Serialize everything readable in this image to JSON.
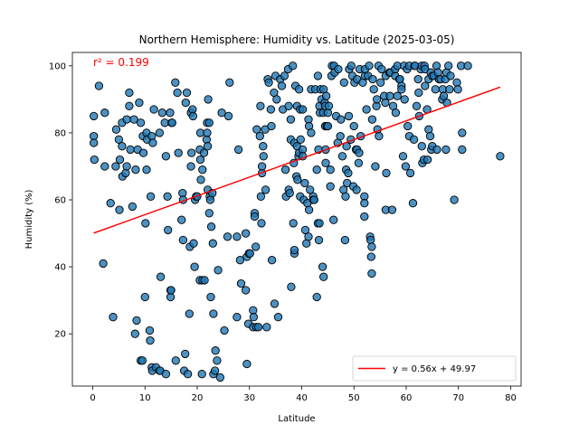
{
  "chart_data": {
    "type": "scatter",
    "title": "Northern Hemisphere: Humidity vs. Latitude (2025-03-05)",
    "xlabel": "Latitude",
    "ylabel": "Humidity (%)",
    "xlim": [
      -3.9,
      82
    ],
    "ylim": [
      4.4,
      104
    ],
    "xticks": [
      0,
      10,
      20,
      30,
      40,
      50,
      60,
      70,
      80
    ],
    "yticks": [
      20,
      40,
      60,
      80,
      100
    ],
    "grid": false,
    "annotation": {
      "text": "r² = 0.199",
      "color": "#ff0000"
    },
    "regression": {
      "label": "y = 0.56x + 49.97",
      "slope": 0.56,
      "intercept": 49.97,
      "x_range": [
        0.2,
        78
      ],
      "color": "#ff0000"
    },
    "legend_position": "lower-right",
    "marker_color": "#1f77b4",
    "points": [
      [
        0.2,
        85
      ],
      [
        0.2,
        79
      ],
      [
        0.2,
        77
      ],
      [
        0.3,
        72
      ],
      [
        1.2,
        94
      ],
      [
        2.0,
        41
      ],
      [
        2.3,
        86
      ],
      [
        2.3,
        70
      ],
      [
        3.4,
        59
      ],
      [
        3.9,
        25
      ],
      [
        4.4,
        70
      ],
      [
        4.5,
        81
      ],
      [
        5.0,
        78
      ],
      [
        5.1,
        57
      ],
      [
        5.2,
        72
      ],
      [
        5.6,
        83
      ],
      [
        5.6,
        76
      ],
      [
        5.7,
        67
      ],
      [
        6.3,
        68
      ],
      [
        6.5,
        84
      ],
      [
        6.5,
        70
      ],
      [
        7.0,
        92
      ],
      [
        7.0,
        88
      ],
      [
        7.2,
        75
      ],
      [
        7.6,
        58
      ],
      [
        7.9,
        84
      ],
      [
        8.1,
        20
      ],
      [
        8.2,
        69
      ],
      [
        8.4,
        24
      ],
      [
        8.6,
        75
      ],
      [
        8.9,
        89
      ],
      [
        9.2,
        83
      ],
      [
        9.2,
        12
      ],
      [
        9.5,
        12
      ],
      [
        9.6,
        79
      ],
      [
        9.7,
        74
      ],
      [
        10.0,
        31
      ],
      [
        10.1,
        53
      ],
      [
        10.3,
        69
      ],
      [
        10.3,
        80
      ],
      [
        10.4,
        78
      ],
      [
        10.9,
        21
      ],
      [
        11.0,
        18
      ],
      [
        11.1,
        61
      ],
      [
        11.3,
        79
      ],
      [
        11.3,
        10
      ],
      [
        11.4,
        9
      ],
      [
        11.5,
        77
      ],
      [
        11.7,
        87
      ],
      [
        12.1,
        10
      ],
      [
        12.8,
        80
      ],
      [
        12.8,
        9
      ],
      [
        12.9,
        9
      ],
      [
        13.0,
        37
      ],
      [
        13.3,
        86
      ],
      [
        13.8,
        83
      ],
      [
        14.0,
        8
      ],
      [
        14.0,
        73
      ],
      [
        14.3,
        61
      ],
      [
        14.4,
        51
      ],
      [
        14.8,
        86
      ],
      [
        14.9,
        31
      ],
      [
        14.9,
        33
      ],
      [
        15.0,
        33
      ],
      [
        15.1,
        83
      ],
      [
        15.2,
        83
      ],
      [
        15.8,
        95
      ],
      [
        15.9,
        12
      ],
      [
        16.2,
        92
      ],
      [
        16.4,
        74
      ],
      [
        17.0,
        54
      ],
      [
        17.2,
        62
      ],
      [
        17.3,
        48
      ],
      [
        17.3,
        60
      ],
      [
        17.5,
        9
      ],
      [
        17.7,
        14
      ],
      [
        17.8,
        89
      ],
      [
        18.0,
        92
      ],
      [
        18.2,
        8
      ],
      [
        18.5,
        26
      ],
      [
        18.6,
        46
      ],
      [
        18.8,
        70
      ],
      [
        18.8,
        86
      ],
      [
        18.9,
        74
      ],
      [
        19.1,
        87
      ],
      [
        19.2,
        85
      ],
      [
        19.3,
        47
      ],
      [
        19.5,
        40
      ],
      [
        19.6,
        60
      ],
      [
        19.8,
        61
      ],
      [
        20.0,
        61
      ],
      [
        20.5,
        36
      ],
      [
        20.5,
        75
      ],
      [
        20.6,
        72
      ],
      [
        20.6,
        80
      ],
      [
        20.7,
        66
      ],
      [
        20.9,
        8
      ],
      [
        21.0,
        69
      ],
      [
        21.0,
        36
      ],
      [
        21.3,
        74
      ],
      [
        21.4,
        36
      ],
      [
        21.8,
        78
      ],
      [
        21.9,
        80
      ],
      [
        21.9,
        83
      ],
      [
        22.0,
        63
      ],
      [
        22.0,
        76
      ],
      [
        22.1,
        90
      ],
      [
        22.3,
        83
      ],
      [
        22.3,
        56
      ],
      [
        22.4,
        61
      ],
      [
        22.5,
        60
      ],
      [
        22.6,
        31
      ],
      [
        22.7,
        52
      ],
      [
        22.9,
        62
      ],
      [
        23.0,
        47
      ],
      [
        23.1,
        26
      ],
      [
        23.1,
        8
      ],
      [
        23.4,
        9
      ],
      [
        23.5,
        15
      ],
      [
        23.8,
        12
      ],
      [
        24.0,
        39
      ],
      [
        24.4,
        7
      ],
      [
        24.7,
        86
      ],
      [
        25.2,
        21
      ],
      [
        25.8,
        49
      ],
      [
        26.0,
        85
      ],
      [
        26.2,
        95
      ],
      [
        27.6,
        25
      ],
      [
        27.6,
        49
      ],
      [
        27.9,
        75
      ],
      [
        28.2,
        42
      ],
      [
        28.4,
        35
      ],
      [
        29.3,
        50
      ],
      [
        29.3,
        33
      ],
      [
        29.5,
        43
      ],
      [
        29.5,
        11
      ],
      [
        29.8,
        23
      ],
      [
        29.9,
        44
      ],
      [
        30.1,
        44
      ],
      [
        30.7,
        27
      ],
      [
        30.7,
        22
      ],
      [
        30.8,
        25
      ],
      [
        31.0,
        56
      ],
      [
        31.0,
        55
      ],
      [
        31.2,
        46
      ],
      [
        31.3,
        22
      ],
      [
        31.4,
        81
      ],
      [
        31.7,
        22
      ],
      [
        32.0,
        79
      ],
      [
        32.1,
        88
      ],
      [
        32.2,
        61
      ],
      [
        32.3,
        53
      ],
      [
        32.4,
        68
      ],
      [
        32.4,
        70
      ],
      [
        32.6,
        76
      ],
      [
        32.7,
        73
      ],
      [
        33.0,
        81
      ],
      [
        33.1,
        63
      ],
      [
        33.3,
        22
      ],
      [
        33.5,
        96
      ],
      [
        33.7,
        95
      ],
      [
        34.1,
        87
      ],
      [
        34.2,
        82
      ],
      [
        34.3,
        42
      ],
      [
        34.7,
        92
      ],
      [
        34.8,
        29
      ],
      [
        35.0,
        97
      ],
      [
        35.2,
        90
      ],
      [
        35.5,
        25
      ],
      [
        35.9,
        96
      ],
      [
        36.2,
        94
      ],
      [
        36.4,
        87
      ],
      [
        36.7,
        97
      ],
      [
        36.9,
        69
      ],
      [
        37.0,
        61
      ],
      [
        37.4,
        99
      ],
      [
        37.5,
        63
      ],
      [
        37.5,
        88
      ],
      [
        37.7,
        62
      ],
      [
        37.9,
        84
      ],
      [
        37.9,
        78
      ],
      [
        38.0,
        34
      ],
      [
        38.3,
        100
      ],
      [
        38.4,
        53
      ],
      [
        38.5,
        71
      ],
      [
        38.6,
        44
      ],
      [
        38.6,
        45
      ],
      [
        38.6,
        77
      ],
      [
        38.8,
        94
      ],
      [
        39.0,
        67
      ],
      [
        39.1,
        88
      ],
      [
        39.1,
        76
      ],
      [
        39.2,
        66
      ],
      [
        39.4,
        73
      ],
      [
        39.5,
        93
      ],
      [
        39.5,
        74
      ],
      [
        39.7,
        61
      ],
      [
        39.7,
        87
      ],
      [
        39.8,
        78
      ],
      [
        40.2,
        87
      ],
      [
        40.2,
        75
      ],
      [
        40.2,
        73
      ],
      [
        40.4,
        60
      ],
      [
        40.6,
        65
      ],
      [
        40.7,
        51
      ],
      [
        40.9,
        47
      ],
      [
        41.1,
        59
      ],
      [
        41.3,
        84
      ],
      [
        41.3,
        49
      ],
      [
        41.4,
        57
      ],
      [
        41.4,
        82
      ],
      [
        41.6,
        63
      ],
      [
        41.8,
        80
      ],
      [
        41.8,
        93
      ],
      [
        42.2,
        61
      ],
      [
        42.2,
        60
      ],
      [
        42.4,
        60
      ],
      [
        42.6,
        93
      ],
      [
        42.9,
        69
      ],
      [
        42.9,
        31
      ],
      [
        43.1,
        97
      ],
      [
        43.1,
        53
      ],
      [
        43.2,
        75
      ],
      [
        43.3,
        48
      ],
      [
        43.4,
        88
      ],
      [
        43.4,
        53
      ],
      [
        43.5,
        86
      ],
      [
        43.6,
        93
      ],
      [
        43.8,
        90
      ],
      [
        44.0,
        40
      ],
      [
        44.1,
        86
      ],
      [
        44.2,
        93
      ],
      [
        44.2,
        37
      ],
      [
        44.4,
        89
      ],
      [
        44.5,
        82
      ],
      [
        44.5,
        88
      ],
      [
        44.6,
        75
      ],
      [
        44.6,
        71
      ],
      [
        44.7,
        91
      ],
      [
        44.8,
        82
      ],
      [
        45.0,
        86
      ],
      [
        45.0,
        82
      ],
      [
        45.2,
        88
      ],
      [
        45.5,
        64
      ],
      [
        45.5,
        69
      ],
      [
        45.7,
        97
      ],
      [
        45.8,
        100
      ],
      [
        46.1,
        54
      ],
      [
        46.2,
        100
      ],
      [
        46.3,
        98
      ],
      [
        46.6,
        85
      ],
      [
        46.9,
        77
      ],
      [
        47.0,
        99
      ],
      [
        47.4,
        79
      ],
      [
        47.5,
        84
      ],
      [
        47.8,
        73
      ],
      [
        48.0,
        63
      ],
      [
        48.1,
        95
      ],
      [
        48.3,
        48
      ],
      [
        48.4,
        61
      ],
      [
        48.5,
        69
      ],
      [
        48.6,
        76
      ],
      [
        48.7,
        65
      ],
      [
        48.9,
        68
      ],
      [
        49.0,
        85
      ],
      [
        49.1,
        99
      ],
      [
        49.4,
        78
      ],
      [
        49.5,
        100
      ],
      [
        49.7,
        97
      ],
      [
        49.9,
        64
      ],
      [
        50.0,
        82
      ],
      [
        50.1,
        95
      ],
      [
        50.4,
        75
      ],
      [
        50.5,
        63
      ],
      [
        50.6,
        96
      ],
      [
        50.6,
        75
      ],
      [
        50.9,
        71
      ],
      [
        51.0,
        74
      ],
      [
        51.1,
        99
      ],
      [
        51.3,
        79
      ],
      [
        51.7,
        95
      ],
      [
        52.0,
        61
      ],
      [
        52.0,
        55
      ],
      [
        52.0,
        59
      ],
      [
        52.1,
        97
      ],
      [
        52.1,
        99
      ],
      [
        52.4,
        87
      ],
      [
        52.7,
        97
      ],
      [
        52.9,
        100
      ],
      [
        53.1,
        49
      ],
      [
        53.2,
        48
      ],
      [
        53.3,
        43
      ],
      [
        53.4,
        38
      ],
      [
        53.4,
        46
      ],
      [
        53.5,
        84
      ],
      [
        53.6,
        96
      ],
      [
        53.8,
        93
      ],
      [
        54.1,
        70
      ],
      [
        54.3,
        88
      ],
      [
        54.4,
        90
      ],
      [
        54.5,
        81
      ],
      [
        54.7,
        100
      ],
      [
        54.8,
        79
      ],
      [
        55.1,
        95
      ],
      [
        55.3,
        99
      ],
      [
        55.8,
        91
      ],
      [
        56.0,
        89
      ],
      [
        56.1,
        57
      ],
      [
        56.1,
        97
      ],
      [
        56.2,
        68
      ],
      [
        56.8,
        98
      ],
      [
        56.9,
        91
      ],
      [
        57.0,
        98
      ],
      [
        57.3,
        57
      ],
      [
        57.5,
        88
      ],
      [
        57.9,
        97
      ],
      [
        57.9,
        99
      ],
      [
        58.0,
        86
      ],
      [
        58.3,
        100
      ],
      [
        58.3,
        91
      ],
      [
        58.7,
        96
      ],
      [
        58.8,
        96
      ],
      [
        59.1,
        94
      ],
      [
        59.1,
        93
      ],
      [
        59.4,
        73
      ],
      [
        59.6,
        100
      ],
      [
        59.7,
        90
      ],
      [
        59.9,
        70
      ],
      [
        60.2,
        99
      ],
      [
        60.3,
        82
      ],
      [
        60.6,
        79
      ],
      [
        60.6,
        100
      ],
      [
        60.8,
        68
      ],
      [
        61.3,
        59
      ],
      [
        61.5,
        78
      ],
      [
        61.6,
        100
      ],
      [
        61.7,
        100
      ],
      [
        62.0,
        88
      ],
      [
        62.3,
        96
      ],
      [
        62.4,
        92
      ],
      [
        62.5,
        85
      ],
      [
        62.8,
        99
      ],
      [
        63.0,
        76
      ],
      [
        63.0,
        100
      ],
      [
        63.1,
        71
      ],
      [
        63.4,
        72
      ],
      [
        63.5,
        100
      ],
      [
        63.6,
        99
      ],
      [
        63.6,
        94
      ],
      [
        64.0,
        87
      ],
      [
        64.1,
        72
      ],
      [
        64.3,
        96
      ],
      [
        64.3,
        81
      ],
      [
        64.6,
        79
      ],
      [
        64.7,
        98
      ],
      [
        64.8,
        75
      ],
      [
        65.0,
        76
      ],
      [
        65.0,
        97
      ],
      [
        65.3,
        97
      ],
      [
        65.6,
        93
      ],
      [
        65.8,
        100
      ],
      [
        65.9,
        75
      ],
      [
        66.1,
        98
      ],
      [
        66.3,
        96
      ],
      [
        66.6,
        96
      ],
      [
        66.9,
        90
      ],
      [
        67.0,
        93
      ],
      [
        67.2,
        91
      ],
      [
        67.5,
        96
      ],
      [
        67.6,
        75
      ],
      [
        67.7,
        98
      ],
      [
        67.8,
        89
      ],
      [
        68.1,
        100
      ],
      [
        68.3,
        93
      ],
      [
        68.5,
        97
      ],
      [
        69.2,
        60
      ],
      [
        69.7,
        95
      ],
      [
        69.9,
        93
      ],
      [
        70.5,
        100
      ],
      [
        70.7,
        75
      ],
      [
        70.7,
        80
      ],
      [
        71.8,
        100
      ],
      [
        78.0,
        73
      ]
    ]
  }
}
